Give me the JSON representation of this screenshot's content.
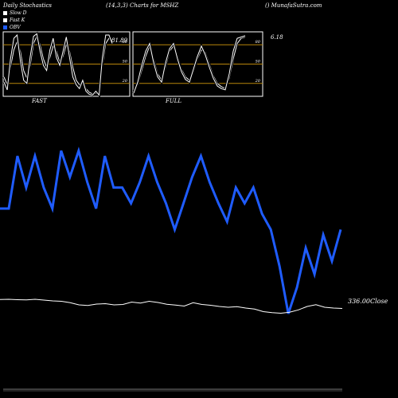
{
  "header": {
    "left": "Daily Stochastics",
    "center": "(14,3,3) Charts for MSHZ",
    "right": "() MunafaSutra.com"
  },
  "legend": [
    {
      "label": "Slow  D",
      "color": "#ffffff"
    },
    {
      "label": "Fast K",
      "color": "#ffffff"
    },
    {
      "label": "OBV",
      "color": "#1f5cff"
    }
  ],
  "panels": {
    "fast": {
      "label": "FAST",
      "value_label": "81.89"
    },
    "full": {
      "label": "FULL",
      "value_label": "6.18"
    }
  },
  "close_label": "336.00Close",
  "colors": {
    "obv": "#1f5cff",
    "band": "#b8860b",
    "line": "#ffffff",
    "background": "#000000"
  },
  "chart_data": [
    {
      "type": "line",
      "panel": "FAST",
      "ylim": [
        0,
        100
      ],
      "yticks": [
        20,
        50,
        80
      ],
      "series": [
        {
          "name": "Slow  D",
          "values": [
            30,
            18,
            45,
            72,
            85,
            70,
            40,
            28,
            48,
            82,
            93,
            80,
            58,
            45,
            60,
            78,
            70,
            52,
            62,
            80,
            70,
            45,
            25,
            18,
            22,
            12,
            6,
            4,
            5,
            3,
            48,
            82,
            90,
            88
          ]
        },
        {
          "name": "Fast K",
          "values": [
            22,
            10,
            58,
            90,
            95,
            55,
            25,
            20,
            62,
            93,
            97,
            70,
            48,
            40,
            72,
            90,
            60,
            48,
            70,
            92,
            60,
            30,
            18,
            12,
            25,
            8,
            3,
            2,
            8,
            2,
            60,
            95,
            95,
            82
          ]
        }
      ]
    },
    {
      "type": "line",
      "panel": "FULL",
      "ylim": [
        0,
        100
      ],
      "yticks": [
        20,
        50,
        80
      ],
      "series": [
        {
          "name": "Slow  D",
          "values": [
            8,
            18,
            40,
            62,
            78,
            58,
            35,
            25,
            45,
            70,
            78,
            62,
            42,
            30,
            25,
            38,
            58,
            72,
            68,
            50,
            32,
            20,
            15,
            12,
            28,
            58,
            82,
            90,
            92
          ]
        },
        {
          "name": "Fast K",
          "values": [
            5,
            22,
            48,
            70,
            82,
            52,
            30,
            22,
            52,
            74,
            82,
            58,
            38,
            26,
            22,
            42,
            62,
            78,
            64,
            45,
            28,
            16,
            12,
            10,
            35,
            70,
            90,
            92,
            94
          ]
        }
      ]
    },
    {
      "type": "line",
      "panel": "OBV / Close",
      "series": [
        {
          "name": "OBV",
          "values": [
            60,
            60,
            80,
            68,
            80,
            68,
            60,
            82,
            72,
            82,
            70,
            60,
            80,
            68,
            68,
            62,
            70,
            80,
            70,
            62,
            52,
            62,
            72,
            80,
            70,
            62,
            55,
            68,
            62,
            68,
            58,
            52,
            38,
            20,
            30,
            45,
            35,
            50,
            40,
            52
          ]
        },
        {
          "name": "Close",
          "values": [
            340.5,
            340.6,
            340.4,
            340.3,
            340.6,
            340.2,
            339.8,
            339.6,
            338.9,
            337.8,
            337.5,
            338.2,
            338.4,
            337.8,
            338.0,
            339.2,
            338.7,
            339.6,
            339.0,
            338.1,
            337.7,
            337.2,
            338.9,
            338.0,
            337.6,
            337.0,
            336.6,
            336.9,
            336.2,
            335.7,
            334.4,
            333.9,
            333.6,
            334.1,
            335.3,
            337.0,
            337.9,
            336.6,
            336.2,
            336.0
          ]
        }
      ]
    }
  ]
}
